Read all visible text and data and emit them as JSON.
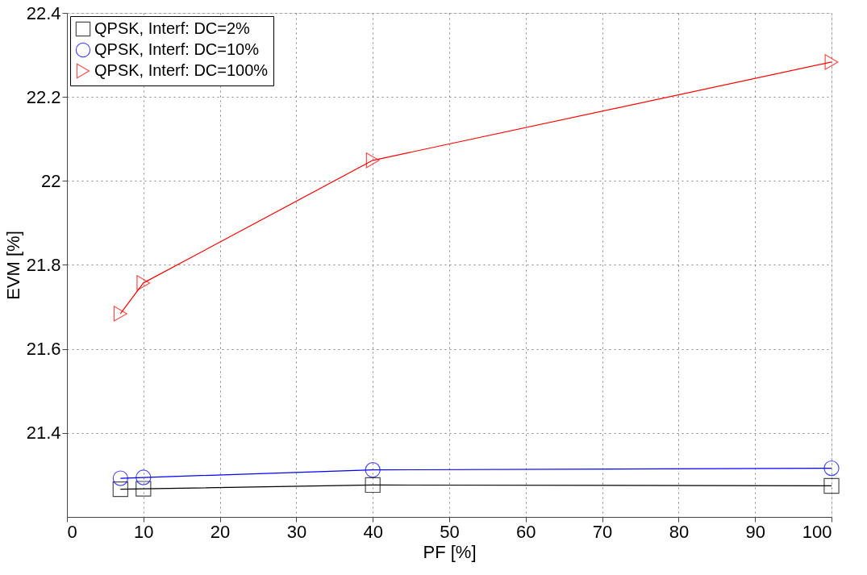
{
  "chart_data": {
    "type": "line",
    "xlabel": "PF [%]",
    "ylabel": "EVM [%]",
    "x": [
      7,
      10,
      40,
      100
    ],
    "series": [
      {
        "name": "QPSK, Interf: DC=2%",
        "color": "#000000",
        "marker": "square",
        "values": [
          21.266,
          21.267,
          21.276,
          21.274
        ]
      },
      {
        "name": "QPSK, Interf: DC=10%",
        "color": "#0000ff",
        "marker": "circle",
        "values": [
          21.292,
          21.294,
          21.312,
          21.316
        ]
      },
      {
        "name": "QPSK, Interf: DC=100%",
        "color": "#ff0000",
        "marker": "triangle",
        "values": [
          21.684,
          21.757,
          22.049,
          22.283
        ]
      }
    ],
    "xlim": [
      0,
      100
    ],
    "xticks": [
      0,
      10,
      20,
      30,
      40,
      50,
      60,
      70,
      80,
      90,
      100
    ],
    "ylim": [
      21.2,
      22.4
    ],
    "yticks": [
      21.4,
      21.6,
      21.8,
      22,
      22.2,
      22.4
    ],
    "grid": true,
    "legend": "top left",
    "line_style": "solid"
  }
}
